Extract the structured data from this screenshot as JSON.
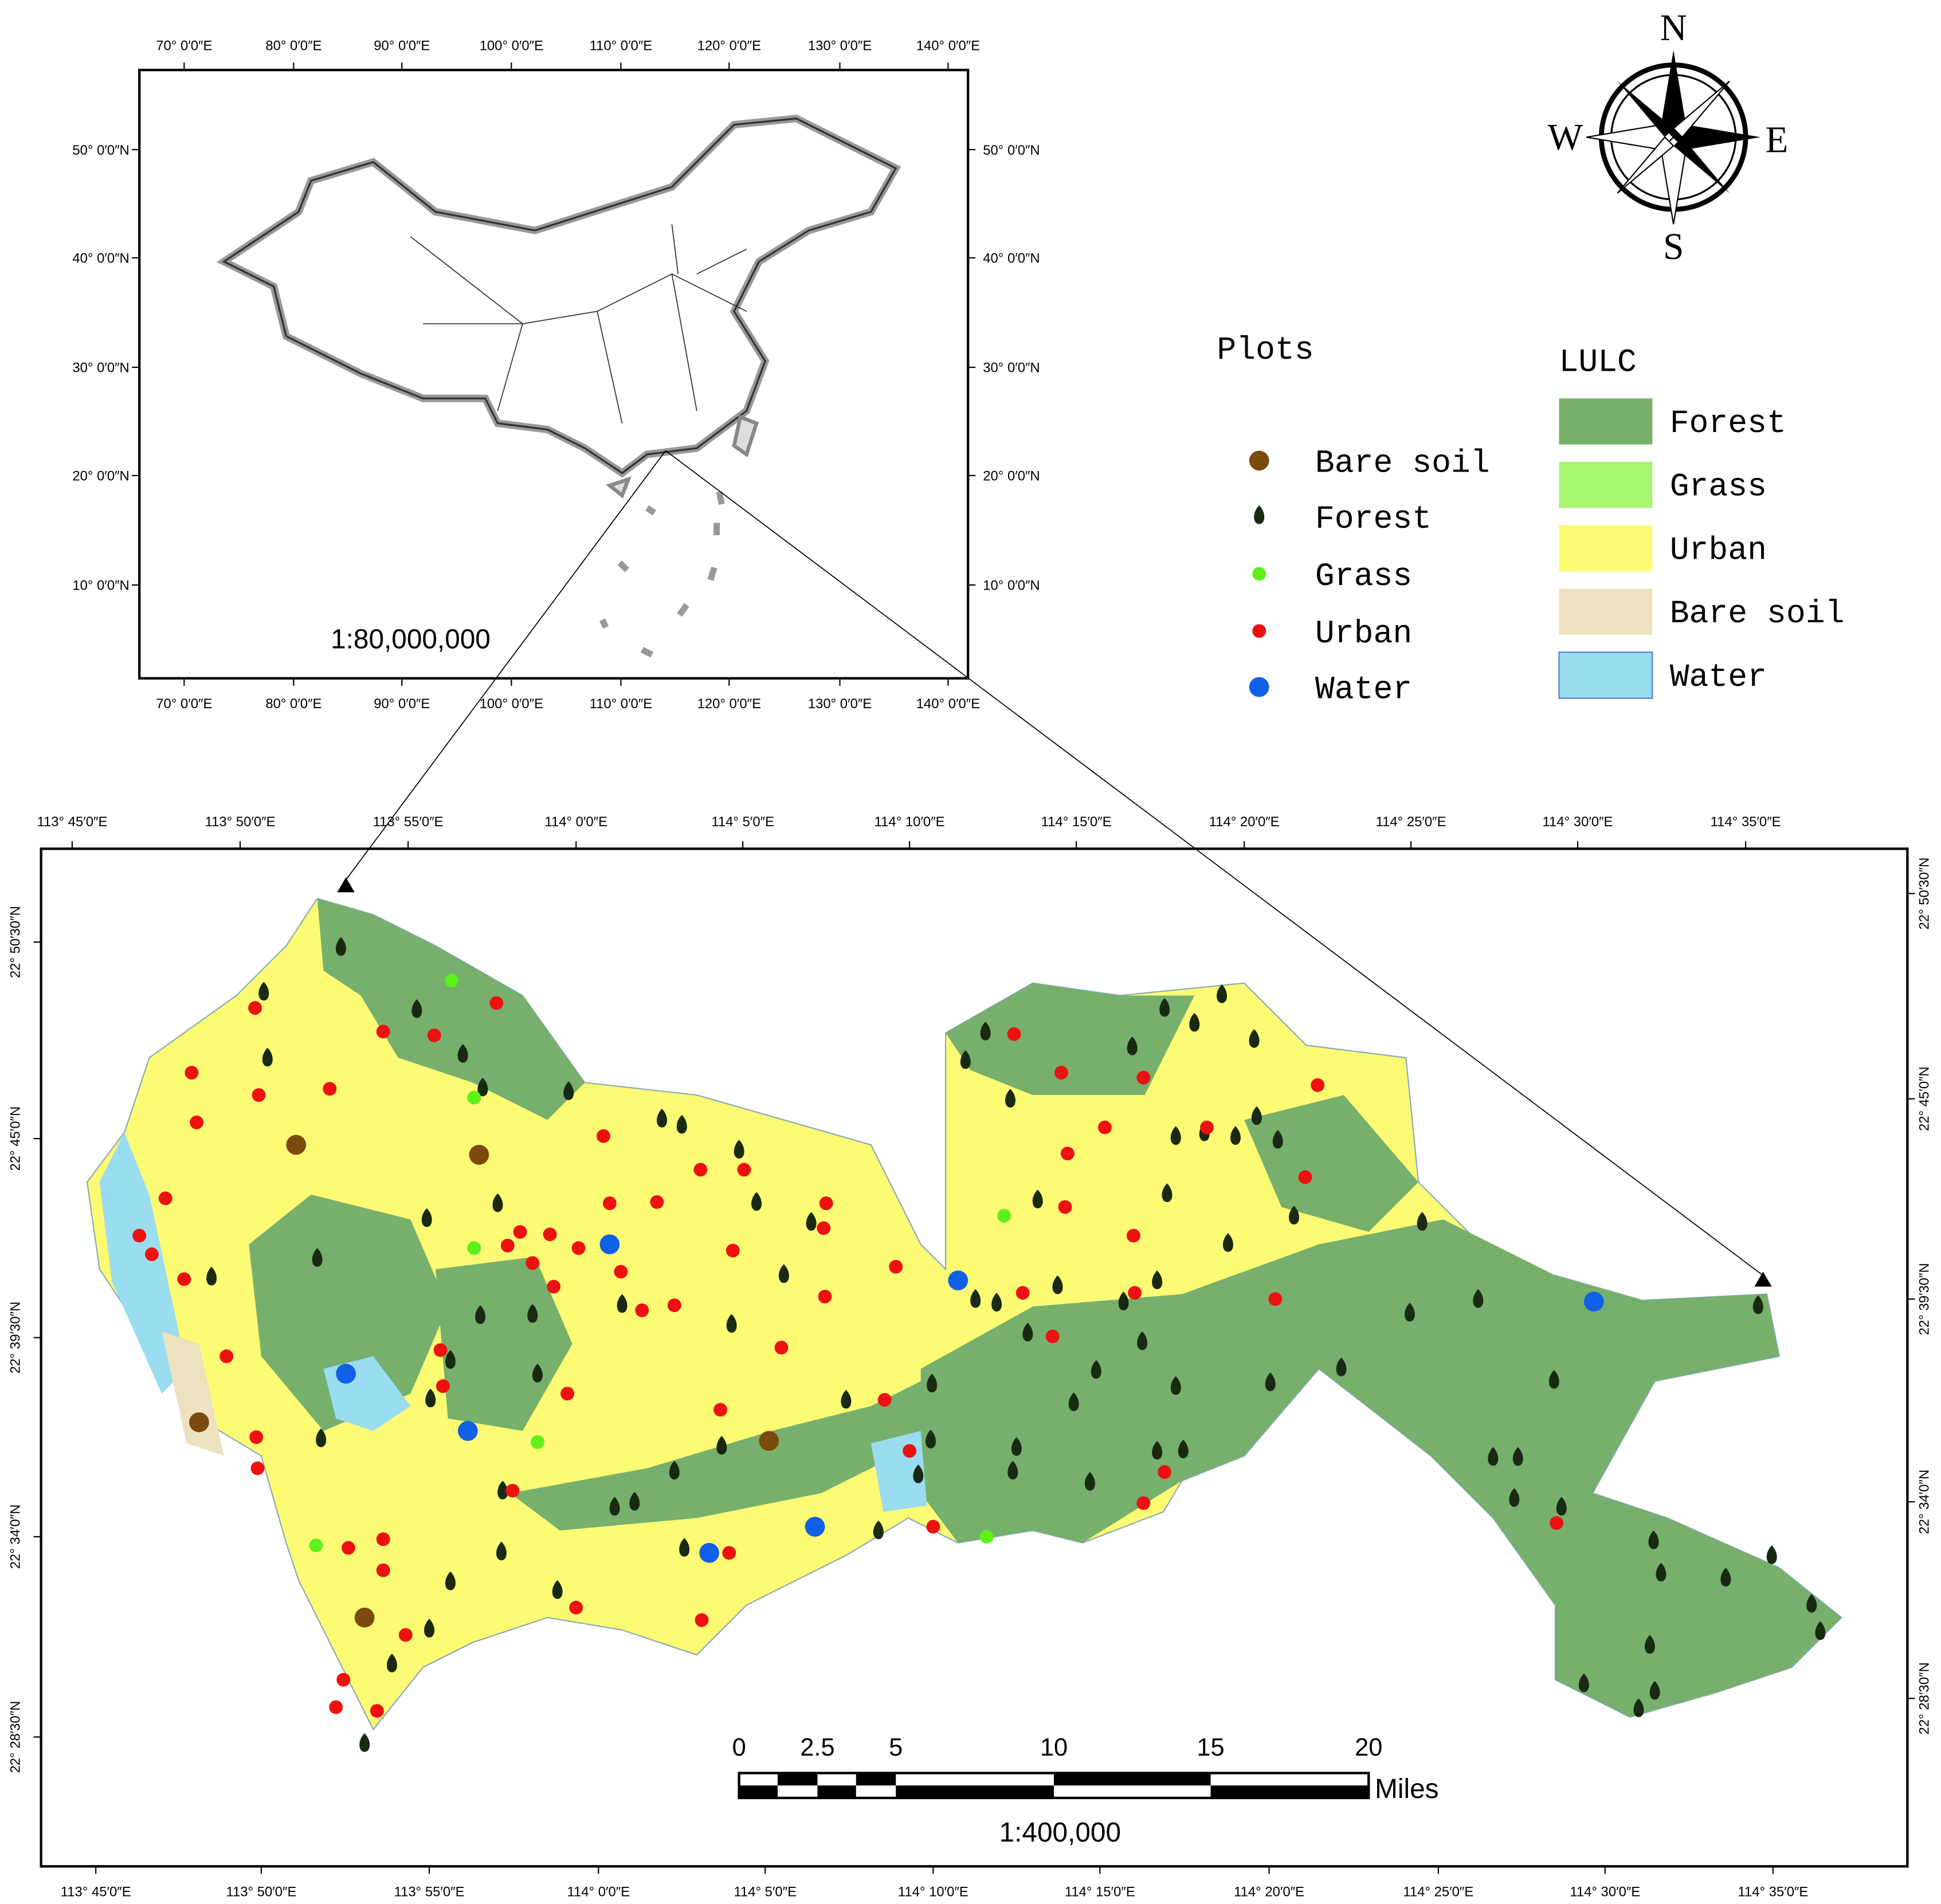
{
  "inset_map": {
    "x_ticks": [
      "70° 0′0″E",
      "80° 0′0″E",
      "90° 0′0″E",
      "100° 0′0″E",
      "110° 0′0″E",
      "120° 0′0″E",
      "130° 0′0″E",
      "140° 0′0″E"
    ],
    "y_ticks": [
      "50° 0′0″N",
      "40° 0′0″N",
      "30° 0′0″N",
      "20° 0′0″N",
      "10° 0′0″N"
    ],
    "scale": "1:80,000,000"
  },
  "compass": {
    "n": "N",
    "e": "E",
    "s": "S",
    "w": "W"
  },
  "plots_legend": {
    "title": "Plots",
    "items": [
      {
        "label": "Bare soil",
        "color": "#7b4a0f"
      },
      {
        "label": "Forest",
        "color": "#1a2a12"
      },
      {
        "label": "Grass",
        "color": "#5ef01a"
      },
      {
        "label": "Urban",
        "color": "#ee1111"
      },
      {
        "label": "Water",
        "color": "#1160e8"
      }
    ]
  },
  "lulc_legend": {
    "title": "LULC",
    "items": [
      {
        "label": "Forest",
        "color": "#76b06c"
      },
      {
        "label": "Grass",
        "color": "#a6f56e"
      },
      {
        "label": "Urban",
        "color": "#fdfb74"
      },
      {
        "label": "Bare soil",
        "color": "#ede2bf"
      },
      {
        "label": "Water",
        "color": "#9adcf0"
      }
    ]
  },
  "main_map": {
    "x_ticks": [
      "113° 45′0″E",
      "113° 50′0″E",
      "113° 55′0″E",
      "114° 0′0″E",
      "114° 5′0″E",
      "114° 10′0″E",
      "114° 15′0″E",
      "114° 20′0″E",
      "114° 25′0″E",
      "114° 30′0″E",
      "114° 35′0″E"
    ],
    "y_ticks": [
      "22° 50′30″N",
      "22° 45′0″N",
      "22° 39′30″N",
      "22° 34′0″N",
      "22° 28′30″N"
    ],
    "scale_bar": {
      "ticks": [
        "0",
        "2.5",
        "5",
        "10",
        "15",
        "20"
      ],
      "unit": "Miles",
      "ratio": "1:400,000"
    }
  }
}
